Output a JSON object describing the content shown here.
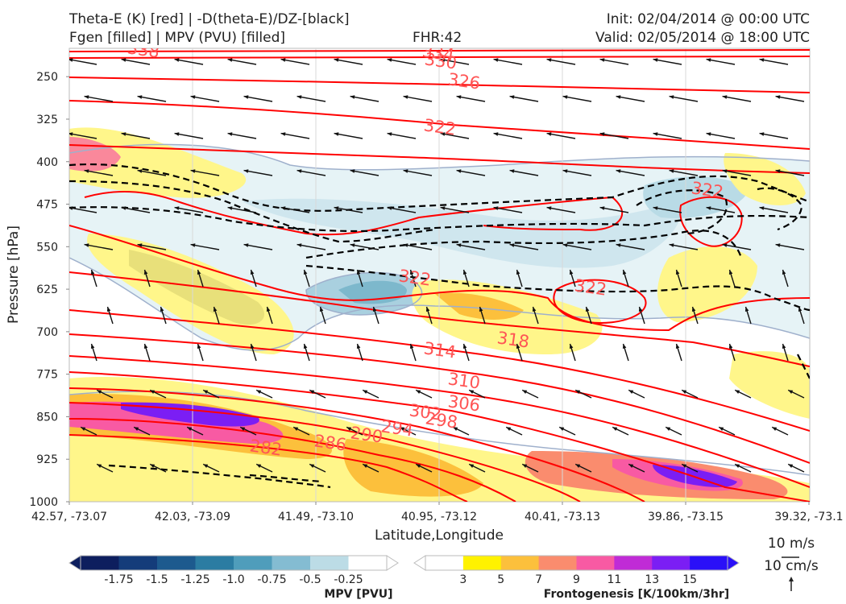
{
  "header": {
    "line1_left": "Theta-E (K) [red] | -D(theta-E)/DZ-[black]",
    "line2_left": "Fgen [filled] | MPV (PVU) [filled]",
    "fhr": "FHR:42",
    "init": "Init: 02/04/2014 @ 00:00 UTC",
    "valid": "Valid: 02/05/2014 @ 18:00 UTC"
  },
  "chart_data": {
    "type": "cross-section",
    "xlabel": "Latitude,Longitude",
    "ylabel": "Pressure [hPa]",
    "y_scale": "linear",
    "ylim": [
      1000,
      200
    ],
    "x_ticks": [
      "42.57, -73.07",
      "42.03, -73.09",
      "41.49, -73.10",
      "40.95, -73.12",
      "40.41, -73.13",
      "39.86, -73.15",
      "39.32, -73.1"
    ],
    "y_ticks": [
      250,
      325,
      400,
      475,
      550,
      625,
      700,
      775,
      850,
      925,
      1000
    ],
    "theta_e_contour_labels": [
      "282",
      "286",
      "290",
      "294",
      "298",
      "302",
      "306",
      "310",
      "314",
      "318",
      "322",
      "322",
      "322",
      "322",
      "326",
      "330",
      "334",
      "338"
    ],
    "theta_e_color": "#ff0000",
    "ddz_theta_e_color": "#000000",
    "mpv_colorbar": {
      "label": "MPV [PVU]",
      "ticks": [
        "-1.75",
        "-1.5",
        "-1.25",
        "-1.0",
        "-0.75",
        "-0.5",
        "-0.25"
      ],
      "colors": [
        "#0d1e5e",
        "#143c7a",
        "#1d5a8e",
        "#2b7ca2",
        "#4f9dbb",
        "#84bcd2",
        "#bcdce6",
        "#ffffff"
      ]
    },
    "fgen_colorbar": {
      "label": "Frontogenesis [K/100km/3hr]",
      "ticks": [
        "3",
        "5",
        "7",
        "9",
        "11",
        "13",
        "15"
      ],
      "colors": [
        "#ffffff",
        "#fff200",
        "#fcc03c",
        "#fa8c6e",
        "#f85aa3",
        "#c02bd6",
        "#7b1ef4",
        "#2a10f8"
      ]
    },
    "wind_reference": {
      "horizontal": "10 m/s",
      "vertical": "10 cm/s"
    }
  }
}
